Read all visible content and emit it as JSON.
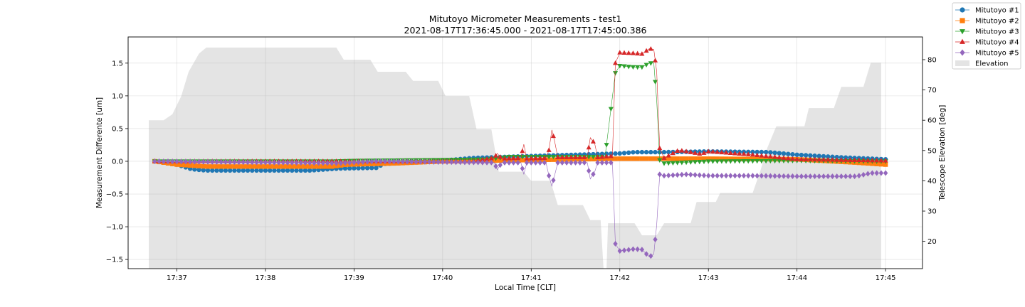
{
  "chart_data": {
    "type": "line",
    "title": "Mitutoyo Micrometer Measurements - test1",
    "subtitle": "2021-08-17T17:36:45.000 - 2021-08-17T17:45:00.386",
    "xlabel": "Local Time [CLT]",
    "ylabel": "Measurement Differente [um]",
    "y2label": "Telescope Elevation [deg]",
    "x_ticks": [
      "17:37",
      "17:38",
      "17:39",
      "17:40",
      "17:41",
      "17:42",
      "17:43",
      "17:44",
      "17:45"
    ],
    "y_ticks": [
      "−1.5",
      "−1.0",
      "−0.5",
      "0.0",
      "0.5",
      "1.0",
      "1.5"
    ],
    "y2_ticks": [
      "20",
      "30",
      "40",
      "50",
      "60",
      "70",
      "80"
    ],
    "xlim": [
      "17:36:27",
      "17:45:25"
    ],
    "ylim": [
      -1.64,
      1.9
    ],
    "y2lim": [
      11,
      87.5
    ],
    "grid": true,
    "legend_position": "top-right",
    "series": [
      {
        "name": "Mitutoyo #1",
        "color": "#1f77b4",
        "marker": "circle",
        "points": [
          [
            "17:36:45",
            0
          ],
          [
            "17:37:00",
            -0.05
          ],
          [
            "17:37:10",
            -0.12
          ],
          [
            "17:37:20",
            -0.14
          ],
          [
            "17:38:30",
            -0.14
          ],
          [
            "17:38:50",
            -0.11
          ],
          [
            "17:39:15",
            -0.1
          ],
          [
            "17:39:20",
            -0.04
          ],
          [
            "17:40:00",
            0.01
          ],
          [
            "17:40:20",
            0.05
          ],
          [
            "17:41:00",
            0.08
          ],
          [
            "17:42:00",
            0.12
          ],
          [
            "17:42:10",
            0.14
          ],
          [
            "17:42:30",
            0.14
          ],
          [
            "17:43:00",
            0.15
          ],
          [
            "17:43:40",
            0.14
          ],
          [
            "17:44:00",
            0.1
          ],
          [
            "17:44:30",
            0.06
          ],
          [
            "17:44:50",
            0.04
          ],
          [
            "17:45:00",
            0.03
          ]
        ]
      },
      {
        "name": "Mitutoyo #2",
        "color": "#ff7f0e",
        "marker": "square",
        "points": [
          [
            "17:36:45",
            0
          ],
          [
            "17:37:00",
            -0.05
          ],
          [
            "17:37:20",
            -0.08
          ],
          [
            "17:38:45",
            -0.08
          ],
          [
            "17:38:55",
            -0.05
          ],
          [
            "17:39:30",
            -0.03
          ],
          [
            "17:40:00",
            0
          ],
          [
            "17:41:00",
            0.02
          ],
          [
            "17:42:00",
            0.04
          ],
          [
            "17:42:30",
            0.04
          ],
          [
            "17:43:00",
            0.04
          ],
          [
            "17:44:00",
            0.03
          ],
          [
            "17:44:40",
            -0.02
          ],
          [
            "17:45:00",
            -0.05
          ]
        ]
      },
      {
        "name": "Mitutoyo #3",
        "color": "#2ca02c",
        "marker": "triangle-down",
        "points": [
          [
            "17:36:45",
            0
          ],
          [
            "17:38:45",
            0
          ],
          [
            "17:39:00",
            0.01
          ],
          [
            "17:40:30",
            0.03
          ],
          [
            "17:40:45",
            0.07
          ],
          [
            "17:41:50",
            0.07
          ],
          [
            "17:41:57",
            1.35
          ],
          [
            "17:42:00",
            1.46
          ],
          [
            "17:42:10",
            1.44
          ],
          [
            "17:42:15",
            1.44
          ],
          [
            "17:42:20",
            1.5
          ],
          [
            "17:42:23",
            1.5
          ],
          [
            "17:42:25",
            0.93
          ],
          [
            "17:42:27",
            0.02
          ],
          [
            "17:42:30",
            -0.03
          ],
          [
            "17:43:00",
            0
          ],
          [
            "17:44:00",
            0.01
          ],
          [
            "17:45:00",
            0
          ]
        ]
      },
      {
        "name": "Mitutoyo #4",
        "color": "#d62728",
        "marker": "triangle-up",
        "points": [
          [
            "17:36:45",
            0
          ],
          [
            "17:40:20",
            0
          ],
          [
            "17:40:35",
            0.05
          ],
          [
            "17:40:37",
            0.12
          ],
          [
            "17:40:40",
            0.04
          ],
          [
            "17:40:53",
            0.05
          ],
          [
            "17:40:55",
            0.26
          ],
          [
            "17:40:57",
            0.04
          ],
          [
            "17:41:10",
            0.05
          ],
          [
            "17:41:12",
            0.17
          ],
          [
            "17:41:14",
            0.48
          ],
          [
            "17:41:16",
            0.29
          ],
          [
            "17:41:18",
            0.06
          ],
          [
            "17:41:38",
            0.06
          ],
          [
            "17:41:40",
            0.36
          ],
          [
            "17:41:43",
            0.27
          ],
          [
            "17:41:45",
            0.06
          ],
          [
            "17:41:55",
            0.08
          ],
          [
            "17:41:57",
            1.5
          ],
          [
            "17:42:00",
            1.66
          ],
          [
            "17:42:10",
            1.65
          ],
          [
            "17:42:15",
            1.64
          ],
          [
            "17:42:20",
            1.72
          ],
          [
            "17:42:23",
            1.71
          ],
          [
            "17:42:25",
            1.37
          ],
          [
            "17:42:27",
            0.2
          ],
          [
            "17:42:30",
            0.05
          ],
          [
            "17:42:40",
            0.17
          ],
          [
            "17:42:55",
            0.11
          ],
          [
            "17:43:00",
            0.15
          ],
          [
            "17:43:30",
            0.1
          ],
          [
            "17:44:00",
            0.03
          ],
          [
            "17:45:00",
            0.01
          ]
        ]
      },
      {
        "name": "Mitutoyo #5",
        "color": "#9467bd",
        "marker": "diamond",
        "points": [
          [
            "17:36:45",
            0
          ],
          [
            "17:38:50",
            -0.03
          ],
          [
            "17:39:15",
            0
          ],
          [
            "17:40:35",
            -0.02
          ],
          [
            "17:40:37",
            -0.13
          ],
          [
            "17:40:40",
            -0.02
          ],
          [
            "17:40:53",
            -0.02
          ],
          [
            "17:40:55",
            -0.2
          ],
          [
            "17:40:57",
            -0.02
          ],
          [
            "17:41:10",
            -0.02
          ],
          [
            "17:41:12",
            -0.22
          ],
          [
            "17:41:14",
            -0.38
          ],
          [
            "17:41:16",
            -0.2
          ],
          [
            "17:41:18",
            -0.02
          ],
          [
            "17:41:38",
            -0.02
          ],
          [
            "17:41:40",
            -0.27
          ],
          [
            "17:41:43",
            -0.16
          ],
          [
            "17:41:45",
            -0.02
          ],
          [
            "17:41:55",
            -0.02
          ],
          [
            "17:41:57",
            -1.26
          ],
          [
            "17:42:00",
            -1.37
          ],
          [
            "17:42:10",
            -1.34
          ],
          [
            "17:42:15",
            -1.35
          ],
          [
            "17:42:20",
            -1.46
          ],
          [
            "17:42:23",
            -1.42
          ],
          [
            "17:42:25",
            -0.97
          ],
          [
            "17:42:27",
            -0.2
          ],
          [
            "17:42:30",
            -0.22
          ],
          [
            "17:42:45",
            -0.2
          ],
          [
            "17:43:00",
            -0.22
          ],
          [
            "17:43:30",
            -0.22
          ],
          [
            "17:44:00",
            -0.23
          ],
          [
            "17:44:40",
            -0.23
          ],
          [
            "17:44:50",
            -0.18
          ],
          [
            "17:45:00",
            -0.18
          ]
        ]
      }
    ],
    "area": {
      "name": "Elevation",
      "color": "#e4e4e4",
      "axis": "right",
      "points": [
        [
          "17:36:41",
          60
        ],
        [
          "17:36:51",
          60
        ],
        [
          "17:36:57",
          62
        ],
        [
          "17:37:03",
          68
        ],
        [
          "17:37:08",
          76
        ],
        [
          "17:37:15",
          82
        ],
        [
          "17:37:20",
          84
        ],
        [
          "17:38:48",
          84
        ],
        [
          "17:38:53",
          80
        ],
        [
          "17:39:11",
          80
        ],
        [
          "17:39:16",
          76
        ],
        [
          "17:39:35",
          76
        ],
        [
          "17:39:40",
          73
        ],
        [
          "17:39:57",
          73
        ],
        [
          "17:40:02",
          68
        ],
        [
          "17:40:18",
          68
        ],
        [
          "17:40:23",
          57
        ],
        [
          "17:40:33",
          57
        ],
        [
          "17:40:38",
          43
        ],
        [
          "17:40:55",
          43
        ],
        [
          "17:41:00",
          40
        ],
        [
          "17:41:13",
          40
        ],
        [
          "17:41:18",
          32
        ],
        [
          "17:41:35",
          32
        ],
        [
          "17:41:40",
          27
        ],
        [
          "17:41:47",
          27
        ],
        [
          "17:41:49",
          11
        ],
        [
          "17:41:51",
          11
        ],
        [
          "17:41:52",
          26
        ],
        [
          "17:42:10",
          26
        ],
        [
          "17:42:15",
          22
        ],
        [
          "17:42:25",
          22
        ],
        [
          "17:42:30",
          26
        ],
        [
          "17:42:48",
          26
        ],
        [
          "17:42:52",
          33
        ],
        [
          "17:43:05",
          33
        ],
        [
          "17:43:08",
          36
        ],
        [
          "17:43:30",
          36
        ],
        [
          "17:43:35",
          43
        ],
        [
          "17:43:40",
          51
        ],
        [
          "17:43:46",
          58
        ],
        [
          "17:44:05",
          58
        ],
        [
          "17:44:08",
          64
        ],
        [
          "17:44:25",
          64
        ],
        [
          "17:44:30",
          71
        ],
        [
          "17:44:45",
          71
        ],
        [
          "17:44:50",
          79
        ],
        [
          "17:44:57",
          79
        ],
        [
          "17:44:57",
          11
        ]
      ]
    }
  }
}
